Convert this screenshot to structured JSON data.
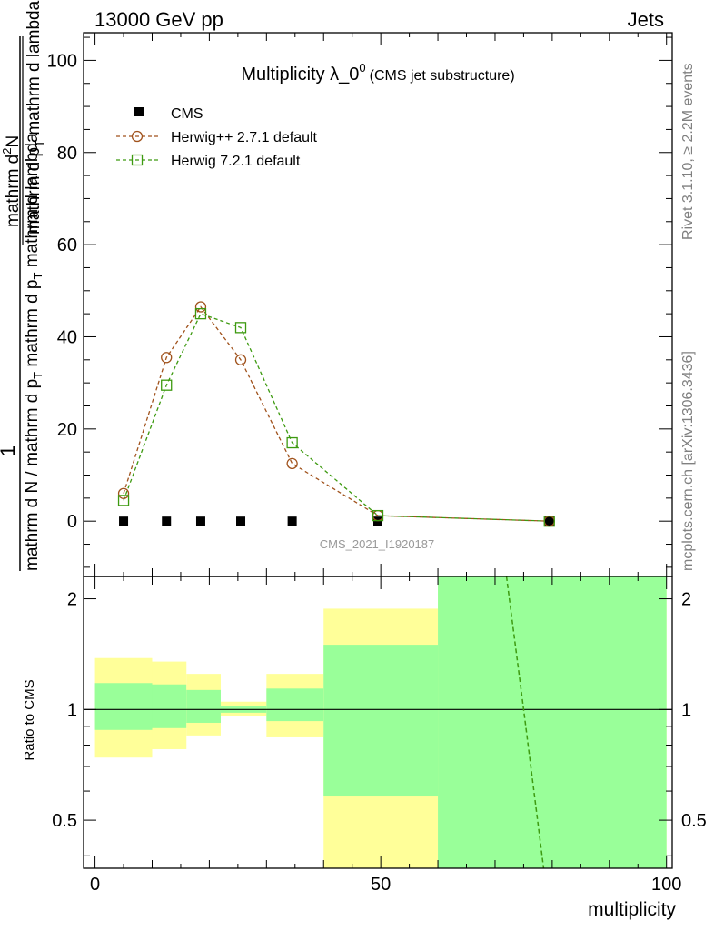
{
  "header": {
    "left": "13000 GeV pp",
    "right": "Jets"
  },
  "side": {
    "rivet": "Rivet 3.1.10, ≥ 2.2M events",
    "mcplots": "mcplots.cern.ch [arXiv:1306.3436]"
  },
  "chart_data": [
    {
      "type": "line",
      "title_main": "Multiplicity λ_0",
      "title_sup": "0",
      "title_paren": "(CMS jet substructure)",
      "ylabel": "1 / (mathrm d N / mathrm d p_T mathrm d p_T mathrm d lambda)  mathrm d^2 N / (mathrm d p_T mathrm d lambda)",
      "ylabel_parts": {
        "one": "1",
        "num": "mathrm d",
        "num_sup": "2",
        "num_rest": "N",
        "den_top": "mathrm d p",
        "den_top_sub": "T",
        "den_top_rest": " mathrm d lambda",
        "den_bot": "mathrm d N / mathrm d p",
        "den_bot_sub": "T",
        "den_bot_rest": " mathrm d p",
        "den_bot_sub2": "T",
        "den_bot_rest2": " mathrm d lambda"
      },
      "watermark": "CMS_2021_I1920187",
      "xlim": [
        -2,
        101
      ],
      "ylim": [
        -12,
        106
      ],
      "yticks": [
        0,
        20,
        40,
        60,
        80,
        100
      ],
      "legend_position": "top-left",
      "series": [
        {
          "name": "CMS",
          "color": "#000000",
          "marker": "filled-square",
          "x": [
            5,
            12.5,
            18.5,
            25.5,
            34.5,
            49.5,
            79.5
          ],
          "y": [
            0,
            0,
            0,
            0,
            0,
            0,
            0
          ]
        },
        {
          "name": "Herwig++ 2.7.1 default",
          "color": "#a0521c",
          "marker": "open-circle",
          "line": "dashed",
          "x": [
            5,
            12.5,
            18.5,
            25.5,
            34.5,
            49.5,
            79.5
          ],
          "y": [
            6,
            35.5,
            46.5,
            35,
            12.5,
            1.2,
            0
          ]
        },
        {
          "name": "Herwig 7.2.1 default",
          "color": "#3d9a10",
          "marker": "open-square",
          "line": "dashed",
          "x": [
            5,
            12.5,
            18.5,
            25.5,
            34.5,
            49.5,
            79.5
          ],
          "y": [
            4.5,
            29.5,
            45,
            42,
            17,
            1.2,
            0
          ]
        }
      ]
    },
    {
      "type": "area",
      "ylabel": "Ratio to CMS",
      "xlabel": "multiplicity",
      "xlim": [
        -2,
        101
      ],
      "ylim": [
        0.37,
        2.3
      ],
      "ylog": true,
      "yticks": [
        0.5,
        1,
        2
      ],
      "xticks": [
        0,
        50,
        100
      ],
      "reference_line": 1,
      "bands": [
        {
          "x0": 0,
          "x1": 10,
          "stat_lo": 0.88,
          "stat_hi": 1.18,
          "tot_lo": 0.74,
          "tot_hi": 1.38
        },
        {
          "x0": 10,
          "x1": 16,
          "stat_lo": 0.89,
          "stat_hi": 1.17,
          "tot_lo": 0.78,
          "tot_hi": 1.35
        },
        {
          "x0": 16,
          "x1": 22,
          "stat_lo": 0.92,
          "stat_hi": 1.13,
          "tot_lo": 0.85,
          "tot_hi": 1.25
        },
        {
          "x0": 22,
          "x1": 30,
          "stat_lo": 0.98,
          "stat_hi": 1.02,
          "tot_lo": 0.96,
          "tot_hi": 1.05
        },
        {
          "x0": 30,
          "x1": 40,
          "stat_lo": 0.93,
          "stat_hi": 1.14,
          "tot_lo": 0.84,
          "tot_hi": 1.25
        },
        {
          "x0": 40,
          "x1": 60,
          "stat_lo": 0.58,
          "stat_hi": 1.5,
          "tot_lo": 0.37,
          "tot_hi": 1.88
        },
        {
          "x0": 60,
          "x1": 100,
          "stat_lo": 0.37,
          "stat_hi": 2.3,
          "tot_lo": 0.37,
          "tot_hi": 2.3
        }
      ],
      "band_colors": {
        "stat": "#99ff99",
        "total": "#ffff99"
      },
      "series": [
        {
          "name": "Herwig 7.2.1 default",
          "color": "#3d9a10",
          "line": "dashed",
          "x": [
            72,
            75,
            78.5
          ],
          "y": [
            2.3,
            1.0,
            0.37
          ]
        }
      ]
    }
  ]
}
